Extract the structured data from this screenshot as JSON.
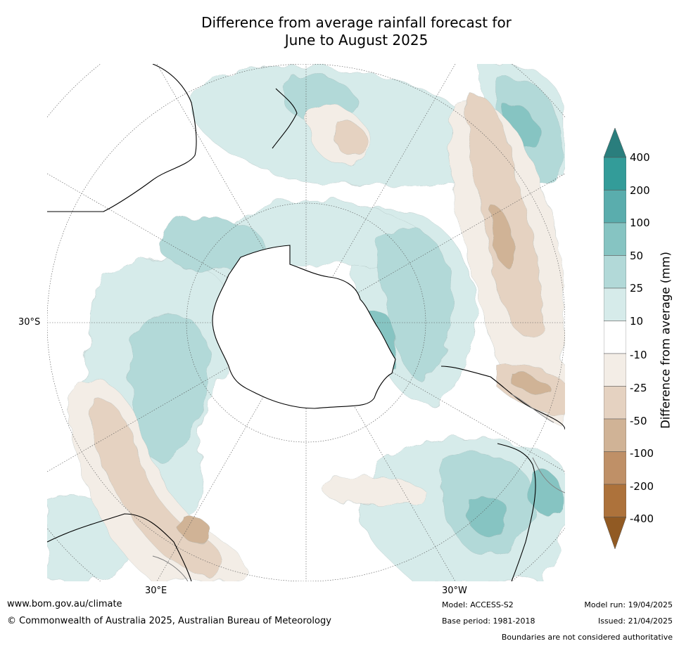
{
  "title_line1": "Difference from average rainfall forecast for",
  "title_line2": "June to August 2025",
  "map": {
    "labels": {
      "lat": "30°S",
      "lon_east": "30°E",
      "lon_west": "30°W"
    },
    "colors": {
      "land_outline": "#000000",
      "border": "#808080",
      "grid": "#555555"
    }
  },
  "colorbar": {
    "title": "Difference from average (mm)",
    "ticks": [
      "400",
      "200",
      "100",
      "50",
      "25",
      "10",
      "-10",
      "-25",
      "-50",
      "-100",
      "-200",
      "-400"
    ],
    "colors": {
      "above_400": "#2a7e7d",
      "200_400": "#339c99",
      "100_200": "#5aadad",
      "50_100": "#86c4c2",
      "25_50": "#b2d9d8",
      "10_25": "#d6ebea",
      "neutral": "#ffffff",
      "m10_m25": "#f3ede6",
      "m25_m50": "#e5d2c1",
      "m50_m100": "#d0b396",
      "m100_m200": "#bf9067",
      "m200_m400": "#ad723b",
      "below_m400": "#915a23"
    }
  },
  "footer": {
    "website": "www.bom.gov.au/climate",
    "copyright": "© Commonwealth of Australia 2025, Australian Bureau of Meteorology",
    "model": "Model: ACCESS-S2",
    "base_period": "Base period: 1981-2018",
    "model_run": "Model run: 19/04/2025",
    "issued": "Issued: 21/04/2025",
    "disclaimer": "Boundaries are not considered authoritative"
  }
}
